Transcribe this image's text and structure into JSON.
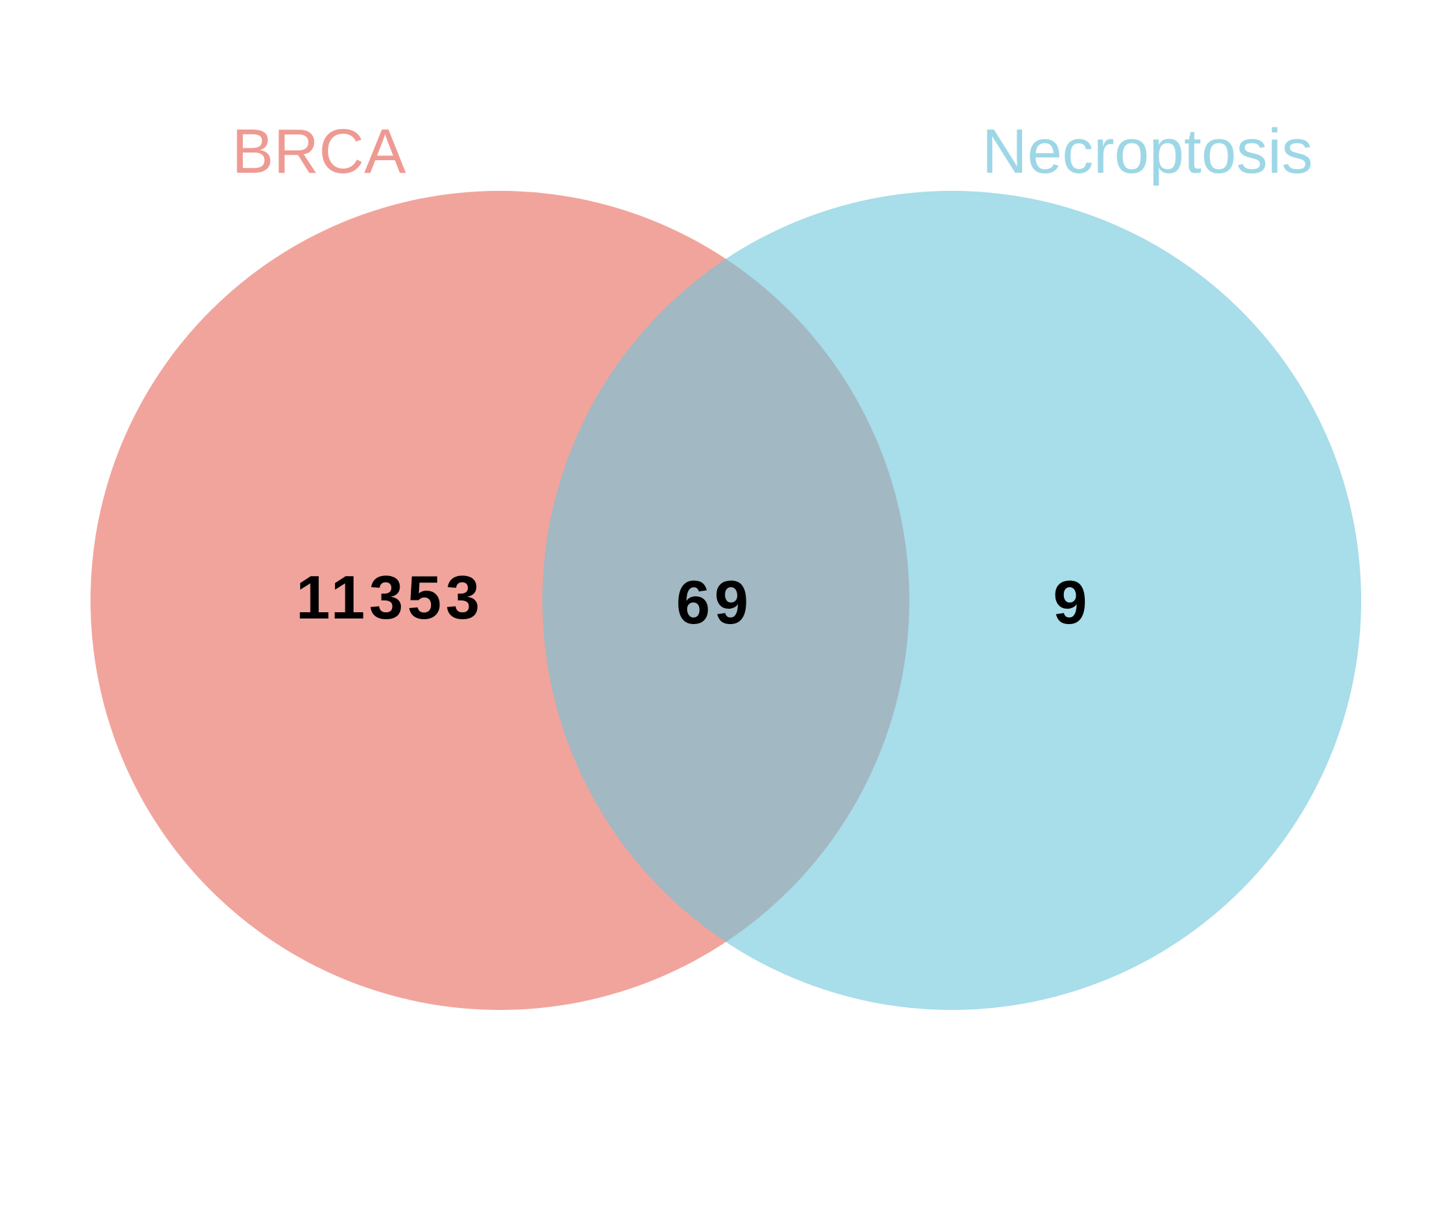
{
  "diagram": {
    "type": "venn",
    "sets": [
      {
        "id": "brca",
        "label": "BRCA",
        "color": "#E8685A",
        "opacity": 0.6
      },
      {
        "id": "necroptosis",
        "label": "Necroptosis",
        "color": "#6EC6DC",
        "opacity": 0.6
      }
    ],
    "regions": {
      "brca_only": "11353",
      "intersection": "69",
      "necroptosis_only": "9"
    }
  }
}
